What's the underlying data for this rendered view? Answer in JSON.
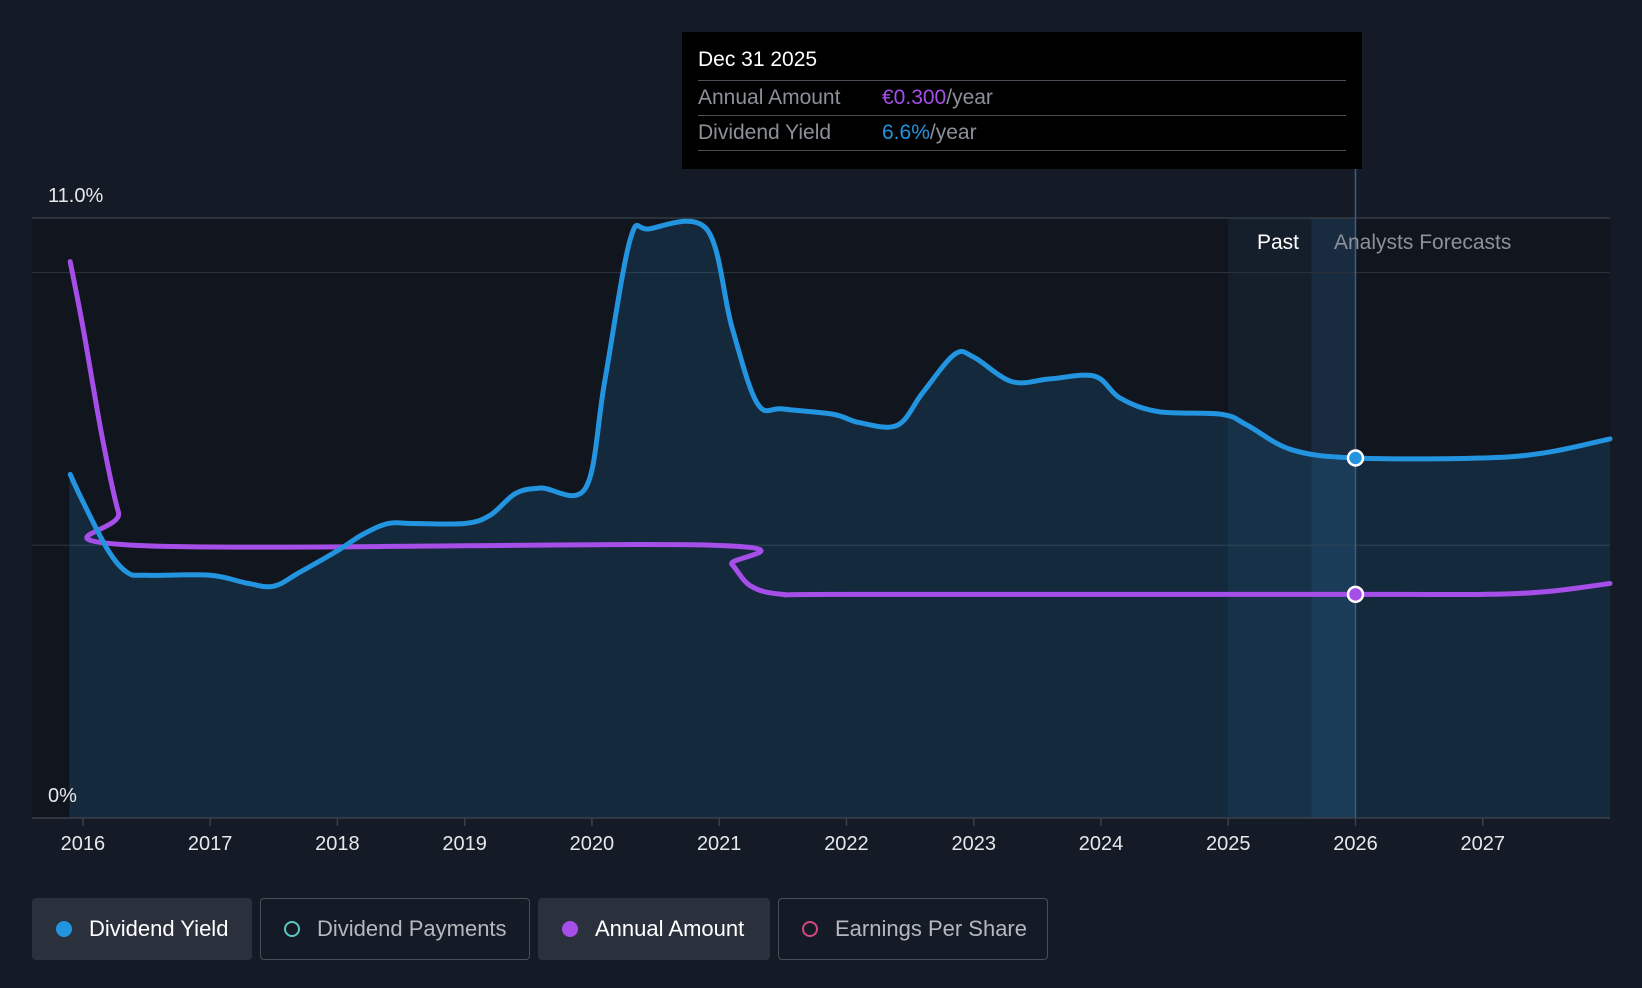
{
  "tooltip": {
    "date": "Dec 31 2025",
    "rows": [
      {
        "label": "Annual Amount",
        "value": "€0.300",
        "unit": "/year",
        "color": "#a64ee8"
      },
      {
        "label": "Dividend Yield",
        "value": "6.6%",
        "unit": "/year",
        "color": "#2394df"
      }
    ]
  },
  "legend": [
    {
      "label": "Dividend Yield",
      "color": "#2394df",
      "active": true
    },
    {
      "label": "Dividend Payments",
      "color": "#5ac8c0",
      "active": false
    },
    {
      "label": "Annual Amount",
      "color": "#a64ee8",
      "active": true
    },
    {
      "label": "Earnings Per Share",
      "color": "#d04a7e",
      "active": false
    }
  ],
  "chart_data": {
    "type": "line",
    "y_axis": {
      "top_label": "11.0%",
      "bottom_label": "0%",
      "ylim": [
        0,
        11
      ]
    },
    "x_ticks": [
      "2016",
      "2017",
      "2018",
      "2019",
      "2020",
      "2021",
      "2022",
      "2023",
      "2024",
      "2025",
      "2026",
      "2027"
    ],
    "x_range": [
      2015.6,
      2028.0
    ],
    "regions": {
      "past_label": "Past",
      "forecast_label": "Analysts Forecasts",
      "past_start": 2025.0,
      "divider": 2026.0
    },
    "series": [
      {
        "name": "Dividend Yield",
        "color": "#2394df",
        "fill": true,
        "points": [
          [
            2015.9,
            6.3
          ],
          [
            2016.0,
            5.8
          ],
          [
            2016.2,
            4.9
          ],
          [
            2016.35,
            4.5
          ],
          [
            2016.5,
            4.45
          ],
          [
            2017.0,
            4.45
          ],
          [
            2017.3,
            4.3
          ],
          [
            2017.5,
            4.25
          ],
          [
            2017.7,
            4.5
          ],
          [
            2018.0,
            4.9
          ],
          [
            2018.2,
            5.2
          ],
          [
            2018.4,
            5.4
          ],
          [
            2018.6,
            5.4
          ],
          [
            2019.0,
            5.4
          ],
          [
            2019.2,
            5.55
          ],
          [
            2019.4,
            5.95
          ],
          [
            2019.6,
            6.05
          ],
          [
            2019.95,
            6.05
          ],
          [
            2020.1,
            8.0
          ],
          [
            2020.3,
            10.6
          ],
          [
            2020.45,
            10.8
          ],
          [
            2020.9,
            10.8
          ],
          [
            2021.1,
            9.0
          ],
          [
            2021.3,
            7.6
          ],
          [
            2021.5,
            7.5
          ],
          [
            2021.9,
            7.4
          ],
          [
            2022.1,
            7.25
          ],
          [
            2022.4,
            7.2
          ],
          [
            2022.6,
            7.8
          ],
          [
            2022.85,
            8.5
          ],
          [
            2023.0,
            8.45
          ],
          [
            2023.3,
            8.0
          ],
          [
            2023.6,
            8.05
          ],
          [
            2023.95,
            8.1
          ],
          [
            2024.15,
            7.7
          ],
          [
            2024.45,
            7.45
          ],
          [
            2024.95,
            7.4
          ],
          [
            2025.15,
            7.2
          ],
          [
            2025.5,
            6.75
          ],
          [
            2026.0,
            6.6
          ],
          [
            2027.0,
            6.6
          ],
          [
            2027.5,
            6.7
          ],
          [
            2028.0,
            6.95
          ]
        ]
      },
      {
        "name": "Annual Amount",
        "color": "#a64ee8",
        "fill": false,
        "points": [
          [
            2015.9,
            10.2
          ],
          [
            2016.0,
            9.0
          ],
          [
            2016.15,
            7.0
          ],
          [
            2016.28,
            5.6
          ],
          [
            2016.4,
            5.0
          ],
          [
            2020.95,
            5.0
          ],
          [
            2021.1,
            4.65
          ],
          [
            2021.25,
            4.25
          ],
          [
            2021.5,
            4.1
          ],
          [
            2022.0,
            4.1
          ],
          [
            2026.0,
            4.1
          ],
          [
            2027.0,
            4.1
          ],
          [
            2027.5,
            4.15
          ],
          [
            2028.0,
            4.3
          ]
        ]
      }
    ],
    "marker_date": "Dec 31 2025",
    "marker_x": 2026.0,
    "grid": true
  }
}
